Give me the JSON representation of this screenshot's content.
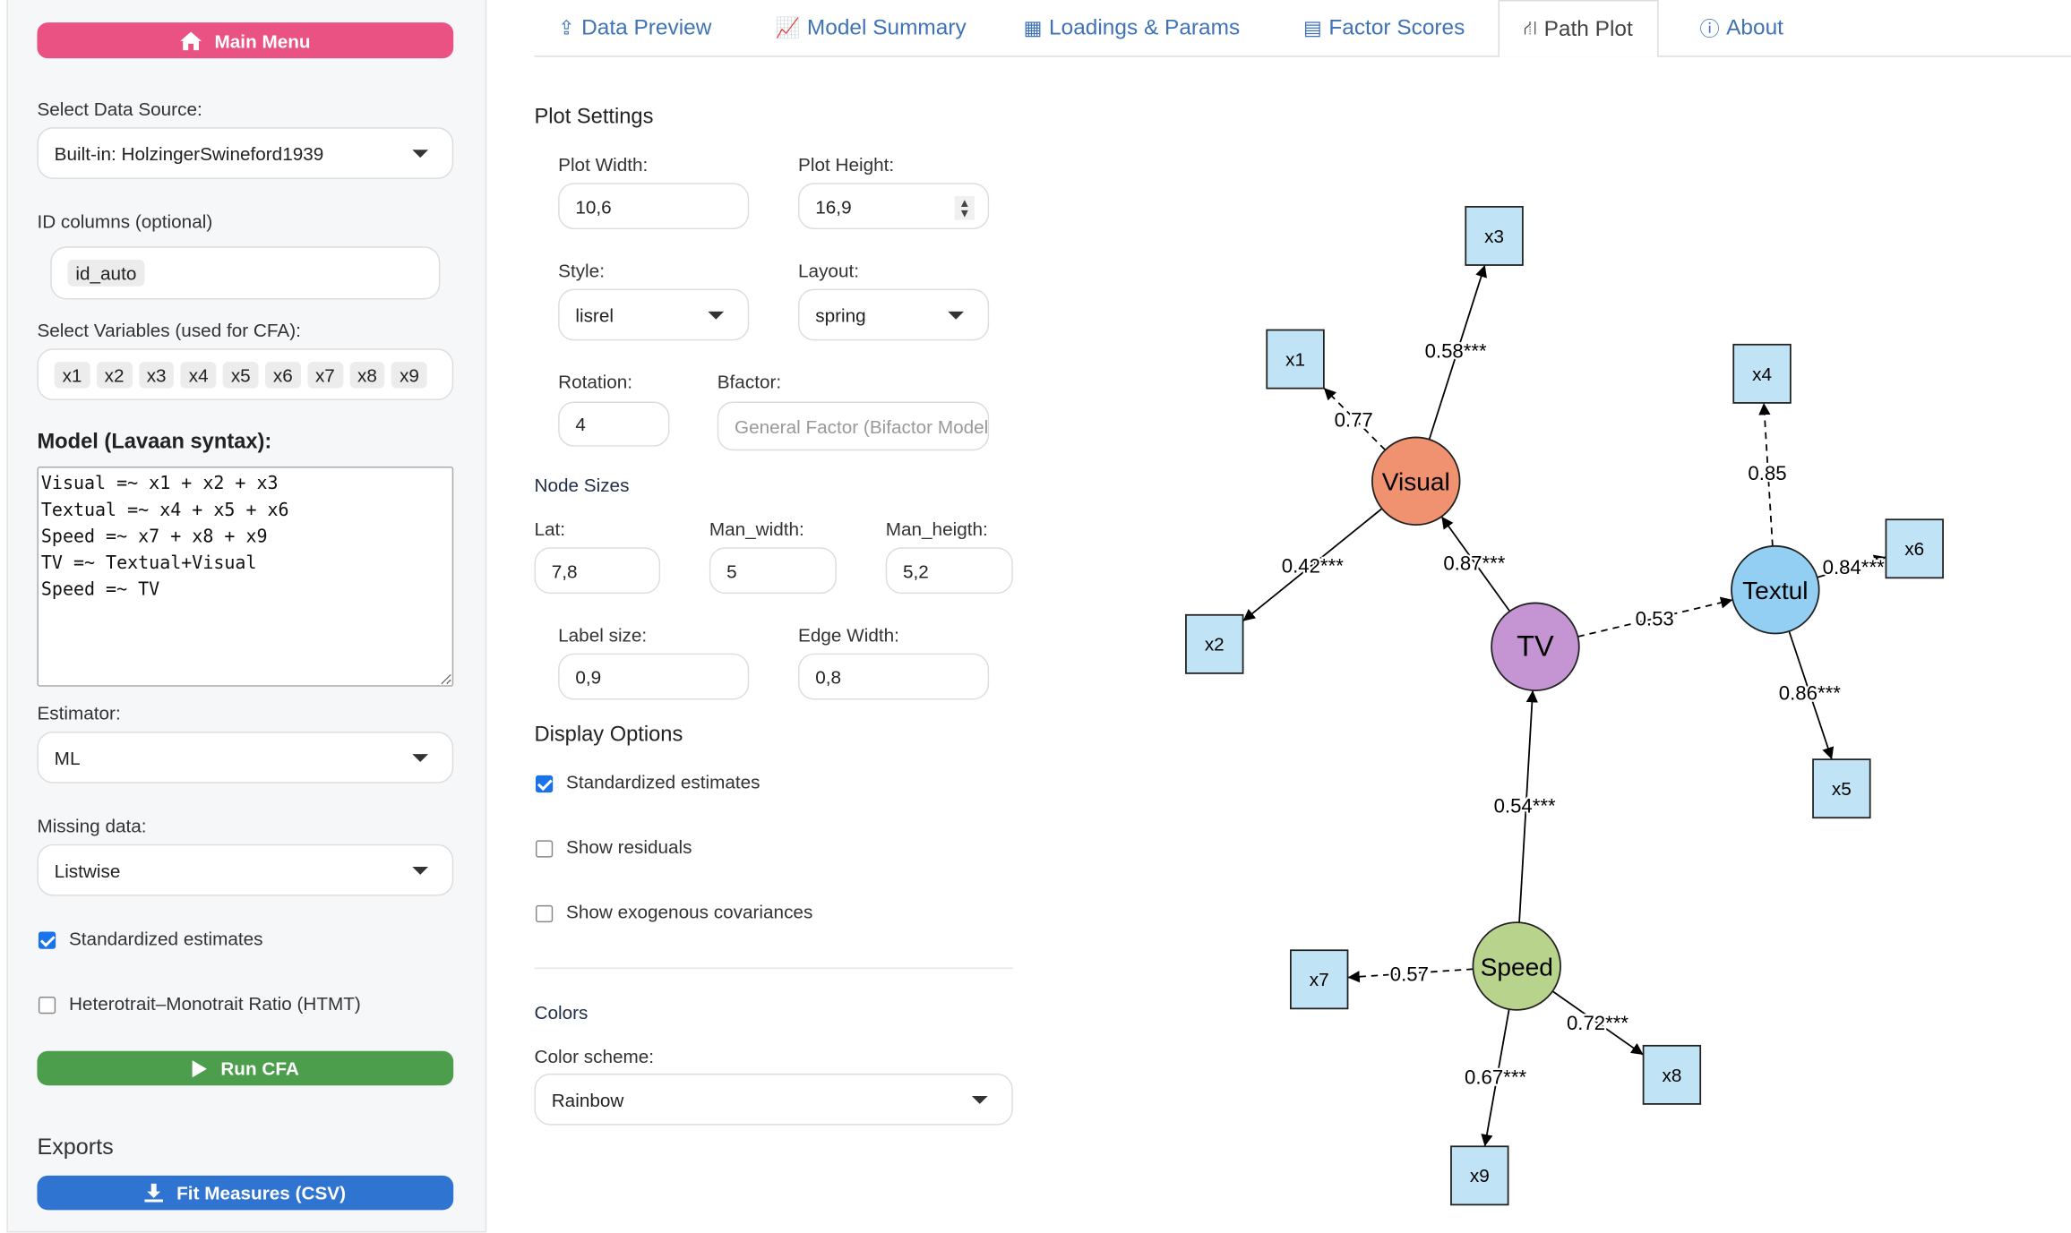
{
  "sidebar": {
    "main_menu": "Main Menu",
    "data_source_label": "Select Data Source:",
    "data_source_value": "Built-in: HolzingerSwineford1939",
    "id_columns_label": "ID columns (optional)",
    "id_columns_chips": [
      "id_auto"
    ],
    "variables_label": "Select Variables (used for CFA):",
    "variables": [
      "x1",
      "x2",
      "x3",
      "x4",
      "x5",
      "x6",
      "x7",
      "x8",
      "x9"
    ],
    "model_label": "Model (Lavaan syntax):",
    "model_text": "Visual =~ x1 + x2 + x3\nTextual =~ x4 + x5 + x6\nSpeed =~ x7 + x8 + x9\nTV =~ Textual+Visual\nSpeed =~ TV",
    "estimator_label": "Estimator:",
    "estimator_value": "ML",
    "missing_label": "Missing data:",
    "missing_value": "Listwise",
    "standardized_label": "Standardized estimates",
    "standardized_checked": true,
    "htmt_label": "Heterotrait–Monotrait Ratio (HTMT)",
    "htmt_checked": false,
    "run_label": "Run CFA",
    "exports_label": "Exports",
    "fit_csv_label": "Fit Measures (CSV)"
  },
  "tabs": [
    {
      "label": "Data Preview",
      "icon": "upload-icon"
    },
    {
      "label": "Model Summary",
      "icon": "line-chart-icon"
    },
    {
      "label": "Loadings & Params",
      "icon": "table-icon"
    },
    {
      "label": "Factor Scores",
      "icon": "calculator-icon"
    },
    {
      "label": "Path Plot",
      "icon": "diagram-icon",
      "active": true
    },
    {
      "label": "About",
      "icon": "info-icon"
    }
  ],
  "settings": {
    "title": "Plot Settings",
    "plot_width_label": "Plot Width:",
    "plot_width": "10,6",
    "plot_height_label": "Plot Height:",
    "plot_height": "16,9",
    "style_label": "Style:",
    "style": "lisrel",
    "layout_label": "Layout:",
    "layout": "spring",
    "rotation_label": "Rotation:",
    "rotation": "4",
    "bfactor_label": "Bfactor:",
    "bfactor_placeholder": "General Factor (Bifactor Model)",
    "node_sizes": "Node Sizes",
    "lat_label": "Lat:",
    "lat": "7,8",
    "man_width_label": "Man_width:",
    "man_width": "5",
    "man_height_label": "Man_heigth:",
    "man_height": "5,2",
    "label_size_label": "Label size:",
    "label_size": "0,9",
    "edge_width_label": "Edge Width:",
    "edge_width": "0,8",
    "display_title": "Display Options",
    "opt_std": "Standardized estimates",
    "opt_std_checked": true,
    "opt_resid": "Show residuals",
    "opt_resid_checked": false,
    "opt_exo": "Show exogenous covariances",
    "opt_exo_checked": false,
    "colors_title": "Colors",
    "scheme_label": "Color scheme:",
    "scheme": "Rainbow"
  },
  "colors": {
    "main_menu": "#e95283",
    "run": "#4c9e4c",
    "export": "#2f74d0",
    "tab": "#3f73b5",
    "visual": "#f0916f",
    "tv": "#c595d3",
    "textul": "#92cff3",
    "speed": "#b8d48c",
    "manifest": "#c0e4f6"
  },
  "diagram": {
    "latents": [
      {
        "id": "Visual",
        "label": "Visual",
        "color": "#f0916f"
      },
      {
        "id": "TV",
        "label": "TV",
        "color": "#c595d3"
      },
      {
        "id": "Textul",
        "label": "Textul",
        "color": "#92cff3"
      },
      {
        "id": "Speed",
        "label": "Speed",
        "color": "#b8d48c"
      }
    ],
    "manifests": [
      "x1",
      "x2",
      "x3",
      "x4",
      "x5",
      "x6",
      "x7",
      "x8",
      "x9"
    ],
    "edges": [
      {
        "from": "Visual",
        "to": "x3",
        "label": "0.58***",
        "dashed": false
      },
      {
        "from": "Visual",
        "to": "x1",
        "label": "0.77",
        "dashed": true
      },
      {
        "from": "Visual",
        "to": "x2",
        "label": "0.42***",
        "dashed": false
      },
      {
        "from": "TV",
        "to": "Visual",
        "label": "0.87***",
        "dashed": false
      },
      {
        "from": "TV",
        "to": "Textul",
        "label": "0.53",
        "dashed": true
      },
      {
        "from": "Textul",
        "to": "x4",
        "label": "0.85",
        "dashed": true
      },
      {
        "from": "Textul",
        "to": "x6",
        "label": "0.84***",
        "dashed": false
      },
      {
        "from": "Textul",
        "to": "x5",
        "label": "0.86***",
        "dashed": false
      },
      {
        "from": "Speed",
        "to": "TV",
        "label": "0.54***",
        "dashed": false
      },
      {
        "from": "Speed",
        "to": "x7",
        "label": "0.57",
        "dashed": true
      },
      {
        "from": "Speed",
        "to": "x8",
        "label": "0.72***",
        "dashed": false
      },
      {
        "from": "Speed",
        "to": "x9",
        "label": "0.67***",
        "dashed": false
      }
    ]
  }
}
